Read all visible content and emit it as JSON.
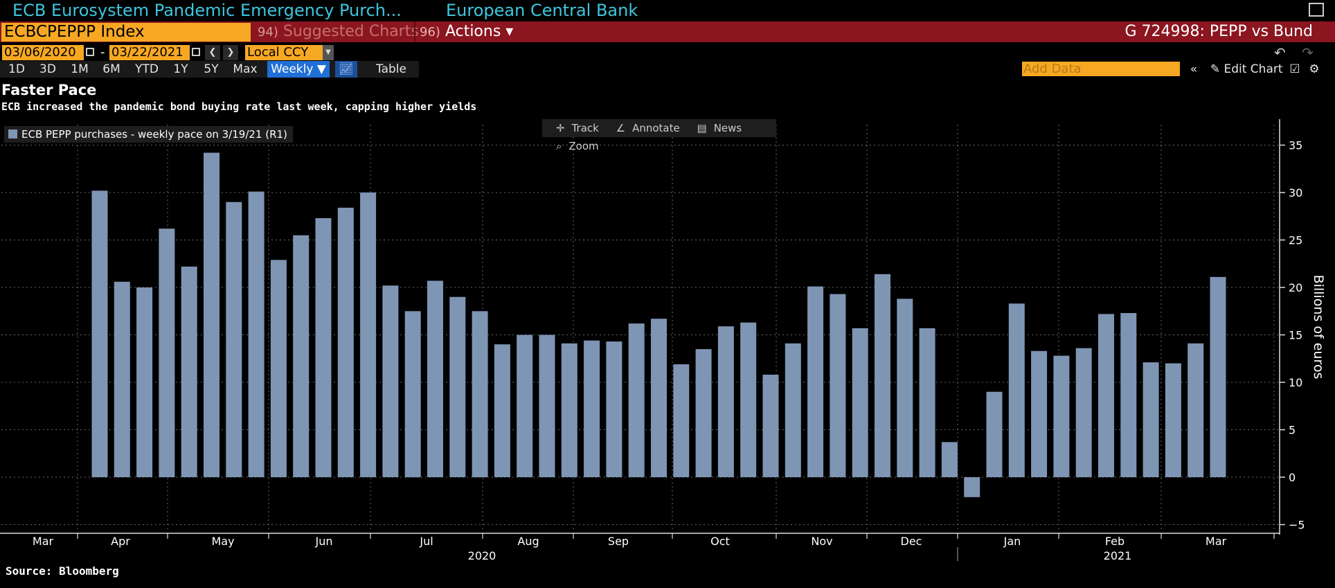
{
  "header": {
    "security_title": "ECB Eurosystem Pandemic Emergency Purch...",
    "issuer": "European Central Bank",
    "ticker": "ECBCPEPPP Index",
    "suggested_num": "94)",
    "suggested_label": "Suggested Charts",
    "actions_num": "96)",
    "actions_label": "Actions ▾",
    "chart_id": "G 724998: PEPP vs Bund"
  },
  "controls": {
    "start_date": "03/06/2020",
    "dash": "-",
    "end_date": "03/22/2021",
    "currency": "Local CCY",
    "ranges": [
      "1D",
      "3D",
      "1M",
      "6M",
      "YTD",
      "1Y",
      "5Y",
      "Max"
    ],
    "frequency": "Weekly ▼",
    "table_label": "Table",
    "add_data_placeholder": "Add Data",
    "edit_chart_label": "Edit Chart"
  },
  "chart_tools": {
    "track": "Track",
    "annotate": "Annotate",
    "news": "News",
    "zoom": "Zoom"
  },
  "colors": {
    "bar": "#7f95b4",
    "background": "#000000",
    "accent_orange": "#f7a823",
    "command_bar_red": "#8b1620",
    "title_cyan": "#3ec6de"
  },
  "chart_data": {
    "type": "bar",
    "title": "Faster Pace",
    "subtitle": "ECB increased the pandemic bond buying rate last week, capping higher yields",
    "ylabel": "Billions of euros",
    "ylim": [
      -5,
      37
    ],
    "yticks": [
      35,
      30,
      25,
      20,
      15,
      10,
      5,
      0,
      -5
    ],
    "grid": true,
    "legend_position": "top-left",
    "series": [
      {
        "name": "ECB PEPP purchases - weekly pace on 3/19/21 (R1)",
        "values": [
          30.2,
          20.6,
          20.0,
          26.2,
          22.2,
          34.2,
          29.0,
          30.1,
          22.9,
          25.5,
          27.3,
          28.4,
          30.0,
          20.2,
          17.5,
          20.7,
          19.0,
          17.5,
          14.0,
          15.0,
          15.0,
          14.1,
          14.4,
          14.3,
          16.2,
          16.7,
          11.9,
          13.5,
          15.9,
          16.3,
          10.8,
          14.1,
          20.1,
          19.3,
          15.7,
          21.4,
          18.8,
          15.7,
          3.7,
          -2.1,
          9.0,
          18.3,
          13.3,
          12.8,
          13.6,
          17.2,
          17.3,
          12.1,
          12.0,
          14.1,
          21.1
        ]
      }
    ],
    "x_month_labels": [
      "Mar",
      "Apr",
      "May",
      "Jun",
      "Jul",
      "Aug",
      "Sep",
      "Oct",
      "Nov",
      "Dec",
      "Jan",
      "Feb",
      "Mar"
    ],
    "x_year_labels": [
      "2020",
      "2021"
    ]
  },
  "footer": {
    "source": "Source: Bloomberg"
  }
}
